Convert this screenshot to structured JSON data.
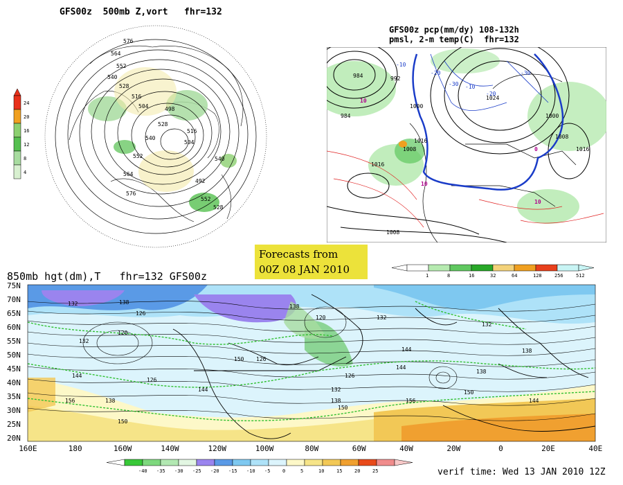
{
  "panels": {
    "vort": {
      "title": "GFS00z  500mb Z,vort   fhr=132",
      "scale_labels": [
        "24",
        "20",
        "16",
        "12",
        "8",
        "4"
      ],
      "scale_colors": [
        "#e8301a",
        "#f0a020",
        "#8cd070",
        "#56c050",
        "#a8dca0",
        "#d8f0d0"
      ],
      "contour_labels": [
        "576",
        "564",
        "552",
        "540",
        "528",
        "516",
        "504",
        "498",
        "528",
        "540",
        "552",
        "564",
        "576",
        "516",
        "504",
        "492",
        "540",
        "552",
        "528"
      ]
    },
    "precip": {
      "title_line1": "GFS00z pcp(mm/dy) 108-132h",
      "title_line2": "pmsl, 2-m temp(C)  fhr=132",
      "isobar_labels": [
        "984",
        "992",
        "1000",
        "1008",
        "1016",
        "1024",
        "1000",
        "1008",
        "1016",
        "984",
        "1016",
        "1008"
      ],
      "temp_labels": [
        "-10",
        "-20",
        "-30",
        "-10",
        "-20",
        "-30",
        "0",
        "10",
        "10",
        "10"
      ],
      "legend_values": [
        "1",
        "8",
        "16",
        "32",
        "64",
        "128",
        "256",
        "512"
      ],
      "legend_colors": [
        "#ffffff",
        "#b6eab0",
        "#60c860",
        "#28a828",
        "#f3d27a",
        "#f0a020",
        "#e8401c",
        "#c8f4f4"
      ]
    },
    "stamp": {
      "line1": "Forecasts from",
      "line2": "00Z 08 JAN 2010"
    },
    "h850": {
      "title": "850mb hgt(dm),T   fhr=132 GFS00z",
      "lat_labels": [
        "75N",
        "70N",
        "65N",
        "60N",
        "55N",
        "50N",
        "45N",
        "40N",
        "35N",
        "30N",
        "25N",
        "20N"
      ],
      "lon_labels": [
        "160E",
        "180",
        "160W",
        "140W",
        "120W",
        "100W",
        "80W",
        "60W",
        "40W",
        "20W",
        "0",
        "20E",
        "40E"
      ],
      "height_labels": [
        "132",
        "138",
        "126",
        "120",
        "132",
        "144",
        "138",
        "126",
        "150",
        "156",
        "144",
        "150",
        "126",
        "138",
        "120",
        "126",
        "132",
        "138",
        "144",
        "150",
        "132",
        "144",
        "138",
        "150",
        "156",
        "132",
        "138",
        "144"
      ],
      "legend_values": [
        "-40",
        "-35",
        "-30",
        "-25",
        "-20",
        "-15",
        "-10",
        "-5",
        "0",
        "5",
        "10",
        "15",
        "20",
        "25"
      ],
      "legend_colors": [
        "#38c838",
        "#7ed87e",
        "#b2e8b2",
        "#e2f6e2",
        "#9a84ee",
        "#5a9ae6",
        "#7ec8f0",
        "#aee2f8",
        "#dcf4fc",
        "#fdf8c8",
        "#f6e488",
        "#f2c856",
        "#f0a030",
        "#e84a1a",
        "#f08c8c"
      ]
    }
  },
  "verif": "verif time: Wed 13 JAN 2010 12Z",
  "colors": {
    "stamp_bg": "#ece23a",
    "blue_line": "#1a3cc8",
    "red_line": "#e02020",
    "green_dash": "#30c030"
  }
}
